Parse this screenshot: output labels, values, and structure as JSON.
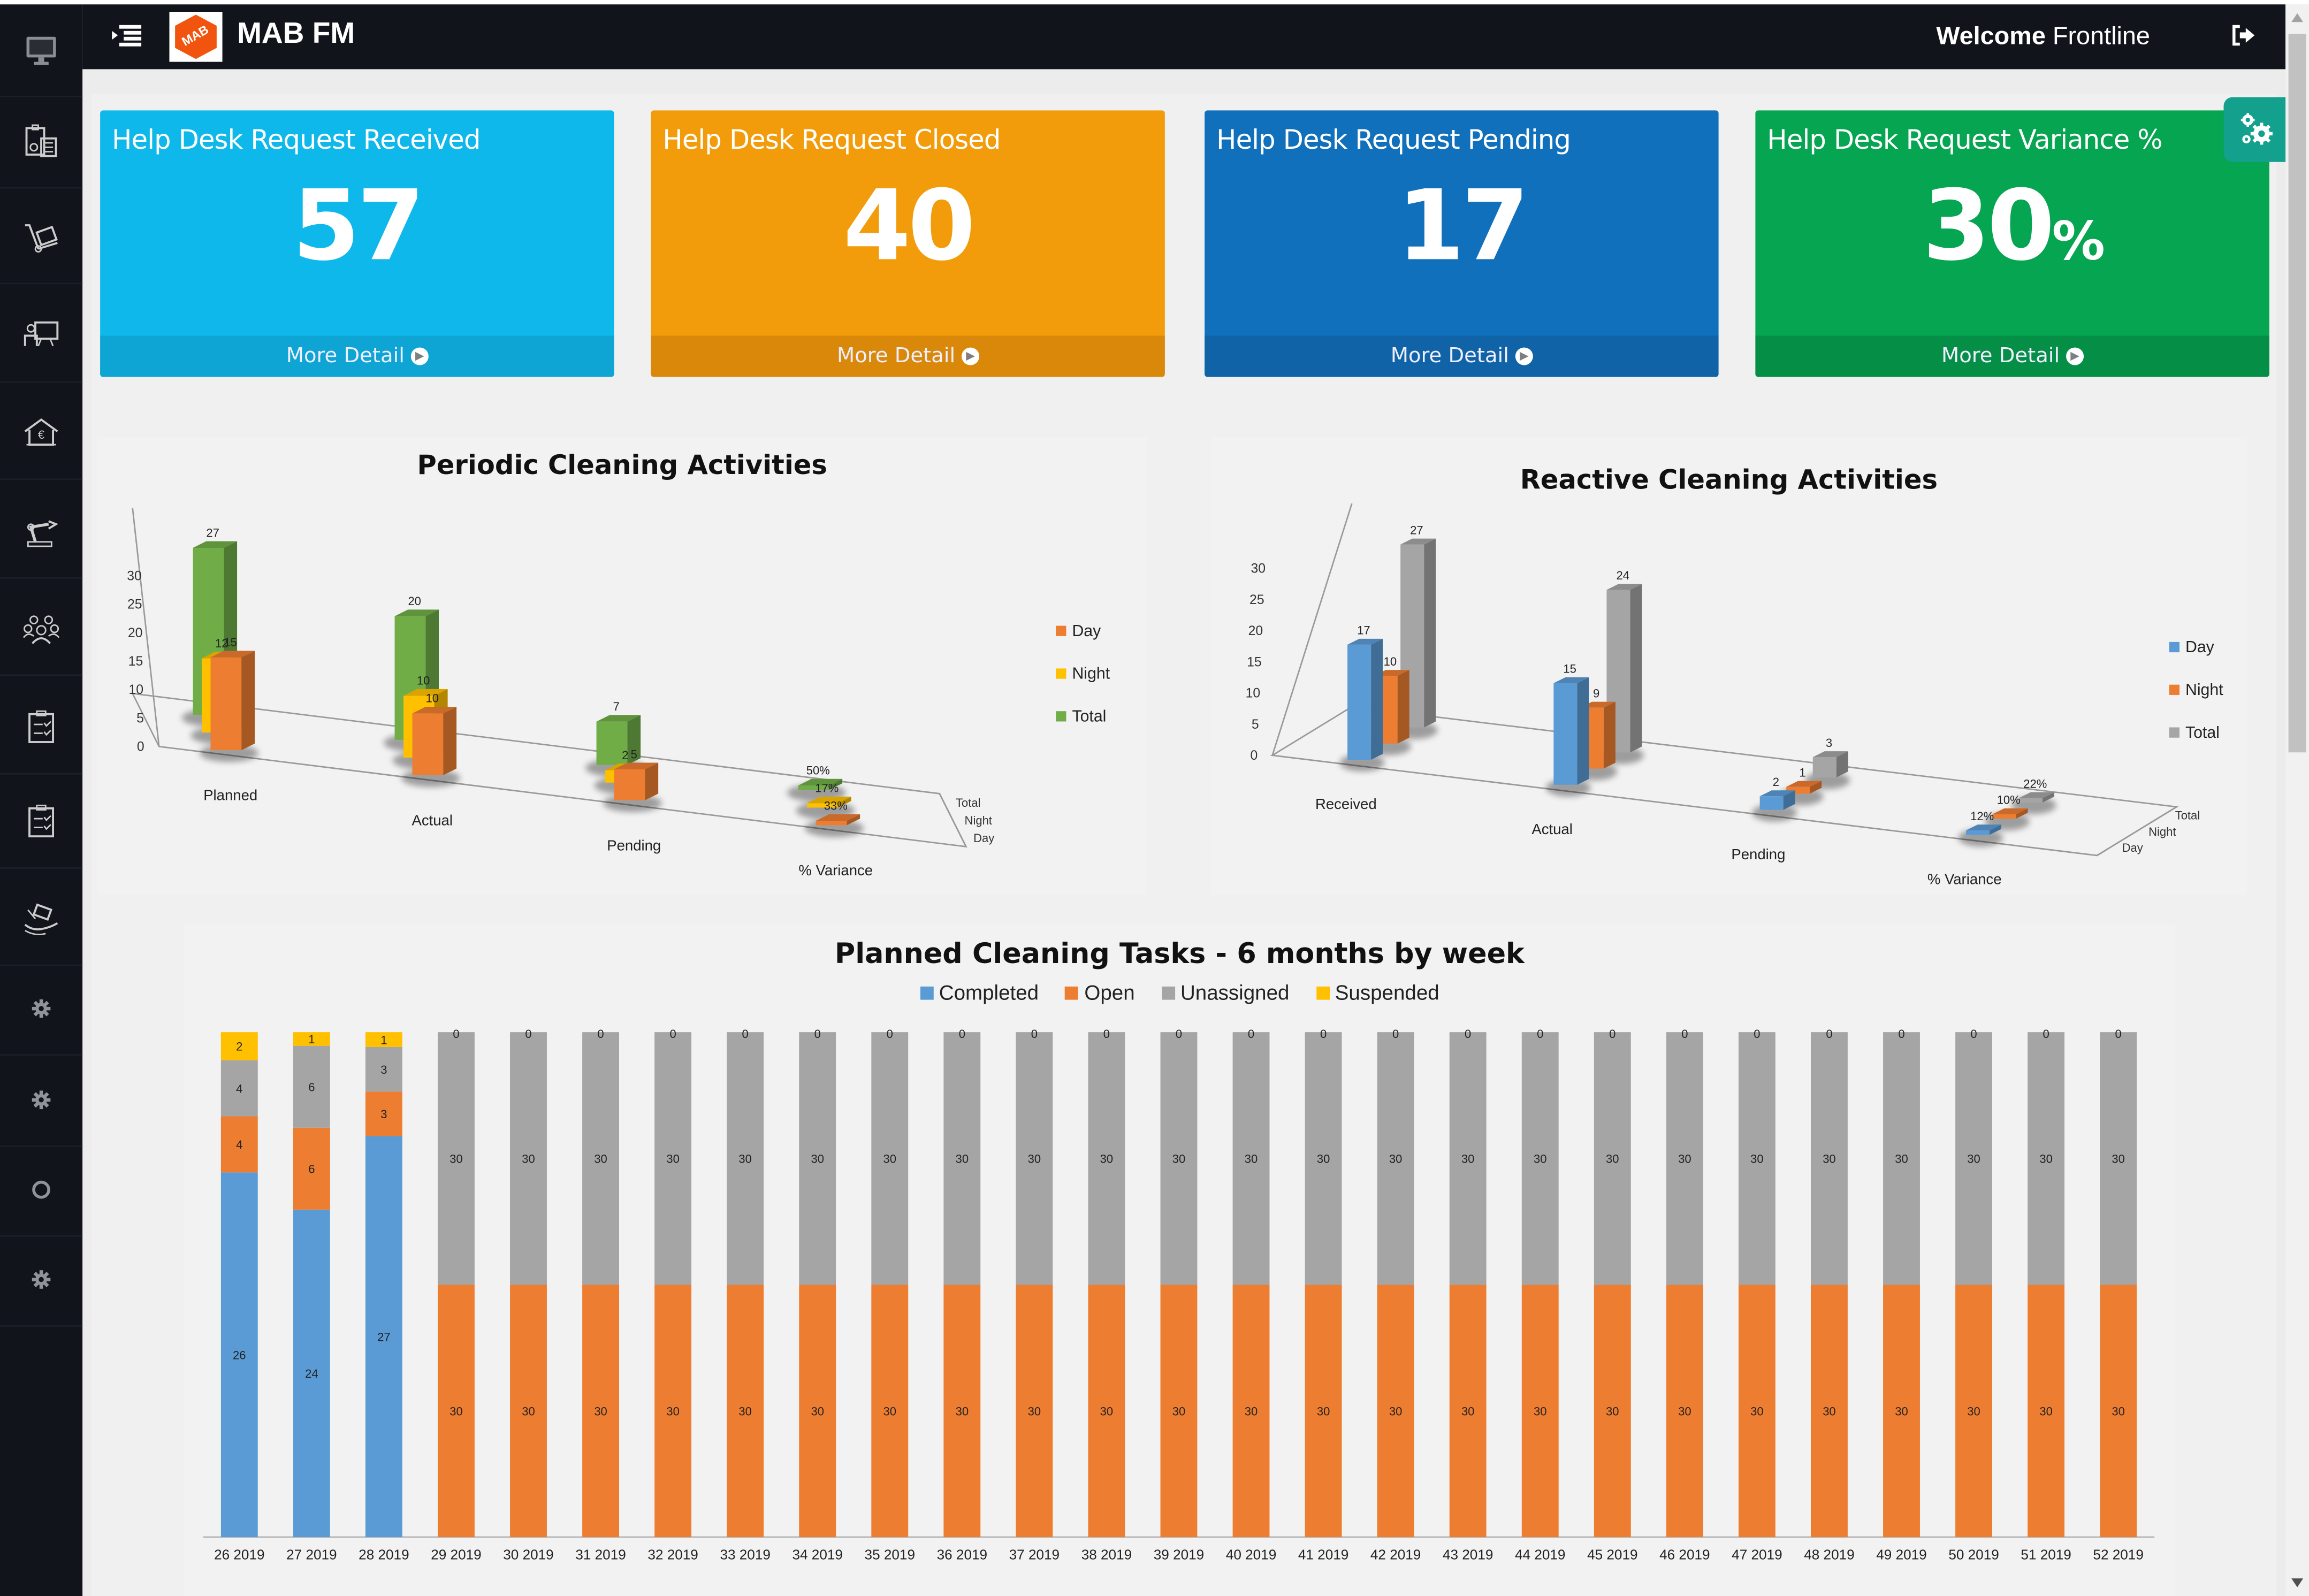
{
  "app": {
    "brand": "MAB FM",
    "logo_text": "MAB",
    "welcome_label": "Welcome",
    "user_name": "Frontline"
  },
  "sidebar": {
    "items": [
      {
        "icon": "monitor-icon"
      },
      {
        "icon": "clipboard-calculator-icon"
      },
      {
        "icon": "hand-truck-icon"
      },
      {
        "icon": "presentation-board-icon"
      },
      {
        "icon": "house-euro-icon"
      },
      {
        "icon": "robotic-arm-icon"
      },
      {
        "icon": "people-group-icon"
      },
      {
        "icon": "checklist-clipboard-icon"
      },
      {
        "icon": "checklist-clipboard-icon"
      },
      {
        "icon": "hand-money-icon"
      },
      {
        "icon": "gear-icon"
      },
      {
        "icon": "gear-icon"
      },
      {
        "icon": "circle-icon"
      },
      {
        "icon": "gear-icon"
      }
    ]
  },
  "kpis": [
    {
      "title": "Help Desk Request Received",
      "value": "57",
      "suffix": "",
      "link": "More Detail",
      "color": "#0fb8ea",
      "footer_color": "#0ea5d4"
    },
    {
      "title": "Help Desk Request Closed",
      "value": "40",
      "suffix": "",
      "link": "More Detail",
      "color": "#f29c0c",
      "footer_color": "#d9880a"
    },
    {
      "title": "Help Desk Request Pending",
      "value": "17",
      "suffix": "",
      "link": "More Detail",
      "color": "#1170bb",
      "footer_color": "#0f63a6"
    },
    {
      "title": "Help Desk Request Variance %",
      "value": "30",
      "suffix": "%",
      "link": "More Detail",
      "color": "#06a551",
      "footer_color": "#058f46"
    }
  ],
  "chart_data": [
    {
      "type": "bar",
      "style": "3d-clustered",
      "title": "Periodic Cleaning Activities",
      "categories": [
        "Planned",
        "Actual",
        "Pending",
        "% Variance"
      ],
      "depth_labels": [
        "Day",
        "Night",
        "Total"
      ],
      "series": [
        {
          "name": "Day",
          "color": "#ed7d31",
          "values": [
            15,
            10,
            5,
            0.33
          ],
          "labels": [
            "15",
            "10",
            "5",
            "33%"
          ]
        },
        {
          "name": "Night",
          "color": "#ffc000",
          "values": [
            12,
            10,
            2,
            0.17
          ],
          "labels": [
            "12",
            "10",
            "2",
            "17%"
          ]
        },
        {
          "name": "Total",
          "color": "#70ad47",
          "values": [
            27,
            20,
            7,
            0.5
          ],
          "labels": [
            "27",
            "20",
            "7",
            "50%"
          ]
        }
      ],
      "yticks": [
        "0",
        "5",
        "10",
        "15",
        "20",
        "25",
        "30"
      ],
      "ylim": [
        0,
        30
      ],
      "legend": "right"
    },
    {
      "type": "bar",
      "style": "3d-clustered",
      "title": "Reactive Cleaning  Activities",
      "categories": [
        "Received",
        "Actual",
        "Pending",
        "% Variance"
      ],
      "depth_labels": [
        "Day",
        "Night",
        "Total"
      ],
      "series": [
        {
          "name": "Day",
          "color": "#5b9bd5",
          "values": [
            17,
            15,
            2,
            0.12
          ],
          "labels": [
            "17",
            "15",
            "2",
            "12%"
          ]
        },
        {
          "name": "Night",
          "color": "#ed7d31",
          "values": [
            10,
            9,
            1,
            0.1
          ],
          "labels": [
            "10",
            "9",
            "1",
            "10%"
          ]
        },
        {
          "name": "Total",
          "color": "#a5a5a5",
          "values": [
            27,
            24,
            3,
            0.22
          ],
          "labels": [
            "27",
            "24",
            "3",
            "22%"
          ]
        }
      ],
      "yticks": [
        "0",
        "5",
        "10",
        "15",
        "20",
        "25",
        "30"
      ],
      "ylim": [
        0,
        30
      ],
      "legend": "right"
    },
    {
      "type": "bar",
      "style": "100%-stacked",
      "title": "Planned Cleaning Tasks - 6 months  by week",
      "categories": [
        "26 2019",
        "27 2019",
        "28 2019",
        "29 2019",
        "30 2019",
        "31 2019",
        "32 2019",
        "33 2019",
        "34 2019",
        "35 2019",
        "36 2019",
        "37 2019",
        "38 2019",
        "39 2019",
        "40 2019",
        "41 2019",
        "42 2019",
        "43 2019",
        "44 2019",
        "45 2019",
        "46 2019",
        "47 2019",
        "48 2019",
        "49 2019",
        "50 2019",
        "51 2019",
        "52 2019"
      ],
      "series": [
        {
          "name": "Completed",
          "color": "#5b9bd5",
          "values": [
            26,
            24,
            27,
            0,
            0,
            0,
            0,
            0,
            0,
            0,
            0,
            0,
            0,
            0,
            0,
            0,
            0,
            0,
            0,
            0,
            0,
            0,
            0,
            0,
            0,
            0,
            0
          ]
        },
        {
          "name": "Open",
          "color": "#ed7d31",
          "values": [
            4,
            6,
            3,
            30,
            30,
            30,
            30,
            30,
            30,
            30,
            30,
            30,
            30,
            30,
            30,
            30,
            30,
            30,
            30,
            30,
            30,
            30,
            30,
            30,
            30,
            30,
            30
          ]
        },
        {
          "name": "Unassigned",
          "color": "#a5a5a5",
          "values": [
            4,
            6,
            3,
            30,
            30,
            30,
            30,
            30,
            30,
            30,
            30,
            30,
            30,
            30,
            30,
            30,
            30,
            30,
            30,
            30,
            30,
            30,
            30,
            30,
            30,
            30,
            30
          ]
        },
        {
          "name": "Suspended",
          "color": "#ffc000",
          "values": [
            2,
            1,
            1,
            0,
            0,
            0,
            0,
            0,
            0,
            0,
            0,
            0,
            0,
            0,
            0,
            0,
            0,
            0,
            0,
            0,
            0,
            0,
            0,
            0,
            0,
            0,
            0
          ]
        }
      ],
      "legend": "top"
    }
  ]
}
